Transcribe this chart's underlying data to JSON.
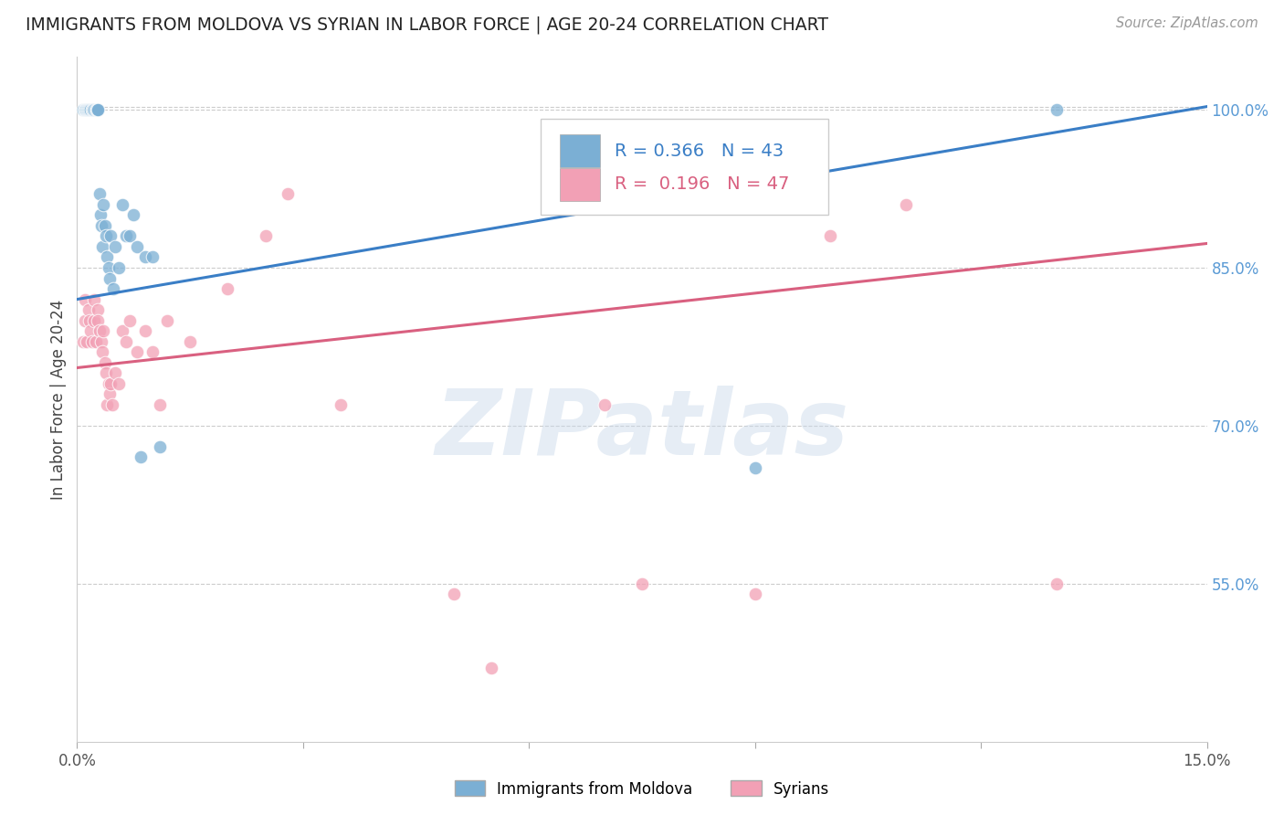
{
  "title": "IMMIGRANTS FROM MOLDOVA VS SYRIAN IN LABOR FORCE | AGE 20-24 CORRELATION CHART",
  "source": "Source: ZipAtlas.com",
  "ylabel": "In Labor Force | Age 20-24",
  "xlim": [
    0.0,
    0.15
  ],
  "ylim": [
    0.4,
    1.05
  ],
  "yticks_right": [
    0.55,
    0.7,
    0.85,
    1.0
  ],
  "ytick_labels_right": [
    "55.0%",
    "70.0%",
    "85.0%",
    "100.0%"
  ],
  "moldova_R": 0.366,
  "moldova_N": 43,
  "syrian_R": 0.196,
  "syrian_N": 47,
  "moldova_color": "#7BAFD4",
  "syrian_color": "#F2A0B5",
  "moldova_line_color": "#3A7EC6",
  "syrian_line_color": "#D96080",
  "watermark_text": "ZIPatlas",
  "moldova_x": [
    0.0008,
    0.001,
    0.001,
    0.001,
    0.0012,
    0.0013,
    0.0014,
    0.0015,
    0.0016,
    0.0018,
    0.002,
    0.002,
    0.0021,
    0.0022,
    0.0025,
    0.0026,
    0.0027,
    0.0028,
    0.003,
    0.0031,
    0.0032,
    0.0033,
    0.0035,
    0.0037,
    0.0038,
    0.004,
    0.0042,
    0.0043,
    0.0045,
    0.0048,
    0.005,
    0.0055,
    0.006,
    0.0065,
    0.007,
    0.0075,
    0.008,
    0.0085,
    0.009,
    0.01,
    0.011,
    0.09,
    0.13
  ],
  "moldova_y": [
    1.0,
    1.0,
    1.0,
    1.0,
    1.0,
    1.0,
    1.0,
    1.0,
    1.0,
    1.0,
    1.0,
    1.0,
    1.0,
    1.0,
    1.0,
    1.0,
    1.0,
    1.0,
    0.92,
    0.9,
    0.89,
    0.87,
    0.91,
    0.89,
    0.88,
    0.86,
    0.85,
    0.84,
    0.88,
    0.83,
    0.87,
    0.85,
    0.91,
    0.88,
    0.88,
    0.9,
    0.87,
    0.67,
    0.86,
    0.86,
    0.68,
    0.66,
    1.0
  ],
  "syrian_x": [
    0.0008,
    0.001,
    0.0011,
    0.0013,
    0.0015,
    0.0017,
    0.0018,
    0.002,
    0.0022,
    0.0023,
    0.0025,
    0.0027,
    0.0028,
    0.003,
    0.0032,
    0.0033,
    0.0035,
    0.0037,
    0.0038,
    0.004,
    0.0042,
    0.0043,
    0.0045,
    0.0047,
    0.005,
    0.0055,
    0.006,
    0.0065,
    0.007,
    0.008,
    0.009,
    0.01,
    0.011,
    0.012,
    0.015,
    0.02,
    0.025,
    0.028,
    0.035,
    0.05,
    0.055,
    0.07,
    0.075,
    0.09,
    0.1,
    0.11,
    0.13
  ],
  "syrian_y": [
    0.78,
    0.8,
    0.82,
    0.78,
    0.81,
    0.8,
    0.79,
    0.78,
    0.8,
    0.82,
    0.78,
    0.81,
    0.8,
    0.79,
    0.78,
    0.77,
    0.79,
    0.76,
    0.75,
    0.72,
    0.74,
    0.73,
    0.74,
    0.72,
    0.75,
    0.74,
    0.79,
    0.78,
    0.8,
    0.77,
    0.79,
    0.77,
    0.72,
    0.8,
    0.78,
    0.83,
    0.88,
    0.92,
    0.72,
    0.54,
    0.47,
    0.72,
    0.55,
    0.54,
    0.88,
    0.91,
    0.55
  ]
}
